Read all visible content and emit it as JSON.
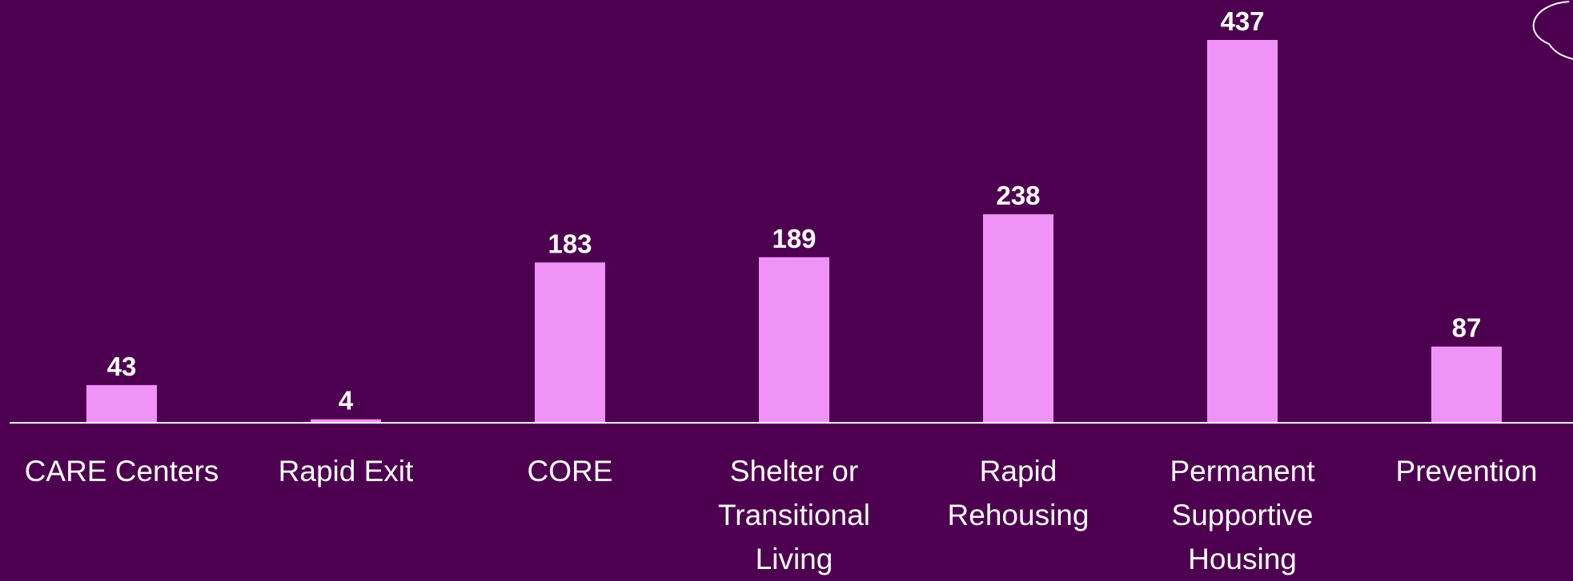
{
  "chart_data": {
    "type": "bar",
    "categories": [
      "CARE Centers",
      "Rapid Exit",
      "CORE",
      "Shelter or Transitional Living",
      "Rapid Rehousing",
      "Permanent Supportive Housing",
      "Prevention"
    ],
    "values": [
      43,
      4,
      183,
      189,
      238,
      437,
      87
    ],
    "color": "#f093f7",
    "ylim": [
      0,
      437
    ]
  }
}
